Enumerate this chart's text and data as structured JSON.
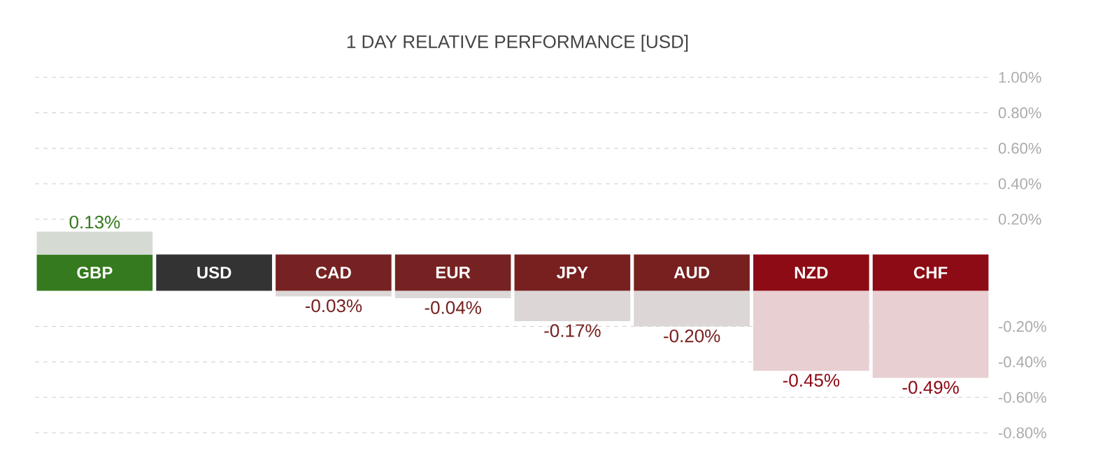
{
  "chart_data": [
    {
      "type": "bar",
      "title": "1 DAY RELATIVE PERFORMANCE  [USD]",
      "categories": [
        null,
        null,
        null,
        null,
        null,
        null,
        null,
        null
      ],
      "tick_labels": "y",
      "values": [
        0.13,
        0,
        null,
        null,
        null,
        null,
        null,
        null
      ],
      "colors": [
        "#d5dbd3",
        "#333333",
        "#dcd8d8",
        "#dcd8d8",
        "#dcd6d6",
        "#dcd6d6",
        "#e8cfd1",
        "#e8cfd1"
      ],
      "value_labels": [
        "0.13%",
        null,
        null,
        null,
        null,
        null,
        null,
        null
      ],
      "ylim": [
        0,
        1.0
      ],
      "yticks": [
        {
          "value": 1.0,
          "label": "1.00%"
        },
        {
          "value": 0.8,
          "label": "0.80%"
        },
        {
          "value": 0.6,
          "label": "0.60%"
        },
        {
          "value": 0.4,
          "label": "0.40%"
        },
        {
          "value": 0.2,
          "label": "0.20%"
        }
      ],
      "grid": "y"
    },
    {
      "type": "bar",
      "categories": [
        "GBP",
        "USD",
        "CAD",
        "EUR",
        "JPY",
        "AUD",
        "NZD",
        "CHF"
      ],
      "values": [
        null,
        0,
        -0.03,
        -0.04,
        -0.17,
        -0.2,
        -0.45,
        -0.49
      ],
      "colors": [
        "#d5dbd3",
        "#333333",
        "#dcd8d8",
        "#dcd8d8",
        "#dcd6d6",
        "#dcd6d6",
        "#e8cfd1",
        "#e8cfd1"
      ],
      "value_labels": [
        null,
        null,
        "-0.03%",
        "-0.04%",
        "-0.17%",
        "-0.20%",
        "-0.45%",
        "-0.49%"
      ],
      "ylim": [
        -0.8,
        0
      ],
      "yticks": [
        {
          "value": -0.2,
          "label": "-0.20%"
        },
        {
          "value": -0.4,
          "label": "-0.40%"
        },
        {
          "value": -0.6,
          "label": "-0.60%"
        },
        {
          "value": -0.8,
          "label": "-0.80%"
        }
      ],
      "grid": "y"
    }
  ]
}
